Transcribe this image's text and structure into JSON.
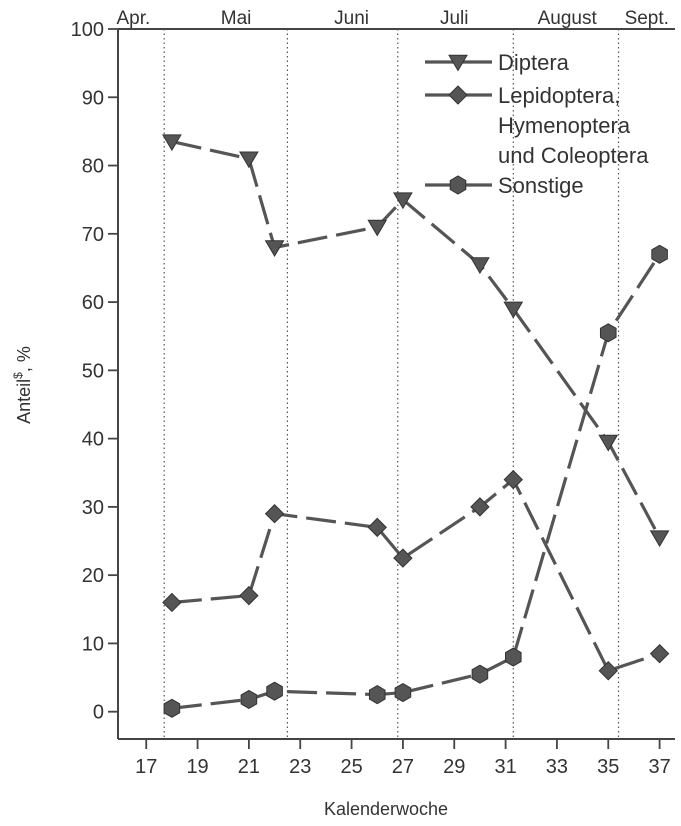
{
  "chart_data": {
    "type": "line",
    "xlabel": "Kalenderwoche",
    "ylabel": "Anteil$ , %",
    "ylabel_main": "Anteil",
    "ylabel_sup": "$",
    "ylabel_tail": ", %",
    "xlim": [
      15.9,
      37.6
    ],
    "ylim": [
      -4,
      100
    ],
    "xticks": [
      17,
      19,
      21,
      23,
      25,
      27,
      29,
      31,
      33,
      35,
      37
    ],
    "yticks": [
      0,
      10,
      20,
      30,
      40,
      50,
      60,
      70,
      80,
      90,
      100
    ],
    "grid": false,
    "legend_position": "top-right",
    "months": [
      {
        "label": "Apr.",
        "center": 16.5
      },
      {
        "label": "Mai",
        "center": 20.5
      },
      {
        "label": "Juni",
        "center": 25.0
      },
      {
        "label": "Juli",
        "center": 29.0
      },
      {
        "label": "August",
        "center": 33.4
      },
      {
        "label": "Sept.",
        "center": 36.5
      }
    ],
    "month_boundaries": [
      17.7,
      22.5,
      26.8,
      31.3,
      35.4
    ],
    "series": [
      {
        "name": "Diptera",
        "marker": "triangle-down",
        "color": "#555555",
        "x": [
          18,
          21,
          22,
          26,
          27,
          30,
          31.3,
          35,
          37
        ],
        "y": [
          83.5,
          81,
          68,
          71,
          75,
          65.5,
          59,
          39.5,
          25.5
        ]
      },
      {
        "name": "Lepidoptera, Hymenoptera und Coleoptera",
        "legend_lines": [
          "Lepidoptera,",
          "Hymenoptera",
          "und Coleoptera"
        ],
        "marker": "diamond",
        "color": "#555555",
        "x": [
          18,
          21,
          22,
          26,
          27,
          30,
          31.3,
          35,
          37
        ],
        "y": [
          16,
          17,
          29,
          27,
          22.5,
          30,
          34,
          6,
          8.5
        ]
      },
      {
        "name": "Sonstige",
        "marker": "hexagon",
        "color": "#555555",
        "x": [
          18,
          21,
          22,
          26,
          27,
          30,
          31.3,
          35,
          37
        ],
        "y": [
          0.5,
          1.8,
          3,
          2.5,
          2.8,
          5.5,
          8,
          55.5,
          67
        ]
      }
    ]
  }
}
